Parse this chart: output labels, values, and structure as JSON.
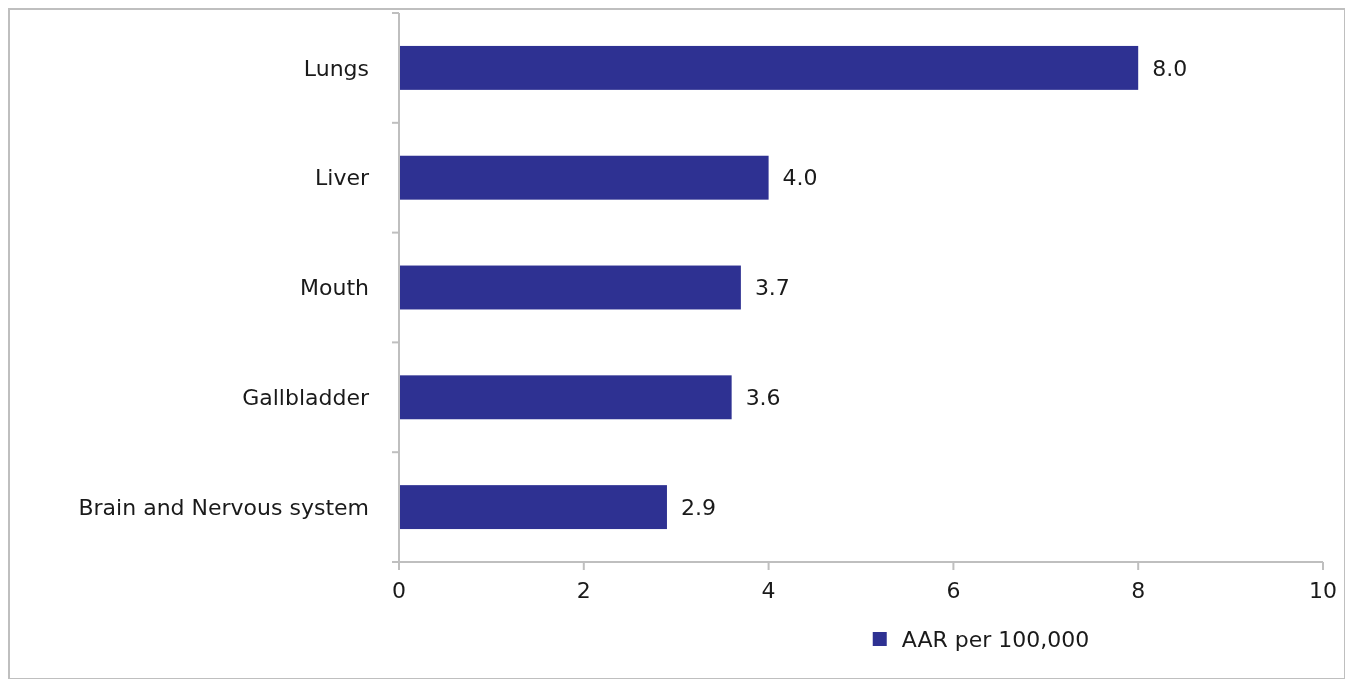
{
  "chart_data": {
    "type": "bar",
    "orientation": "horizontal",
    "categories": [
      "Lungs",
      "Liver",
      "Mouth",
      "Gallbladder",
      "Brain and Nervous system"
    ],
    "series": [
      {
        "name": "AAR per 100,000",
        "color": "#2e3192",
        "values": [
          8.0,
          4.0,
          3.7,
          3.6,
          2.9
        ],
        "value_labels": [
          "8.0",
          "4.0",
          "3.7",
          "3.6",
          "2.9"
        ]
      }
    ],
    "xlim": [
      0,
      10
    ],
    "xticks": [
      0,
      2,
      4,
      6,
      8,
      10
    ],
    "legend": "bottom",
    "grid": false
  }
}
